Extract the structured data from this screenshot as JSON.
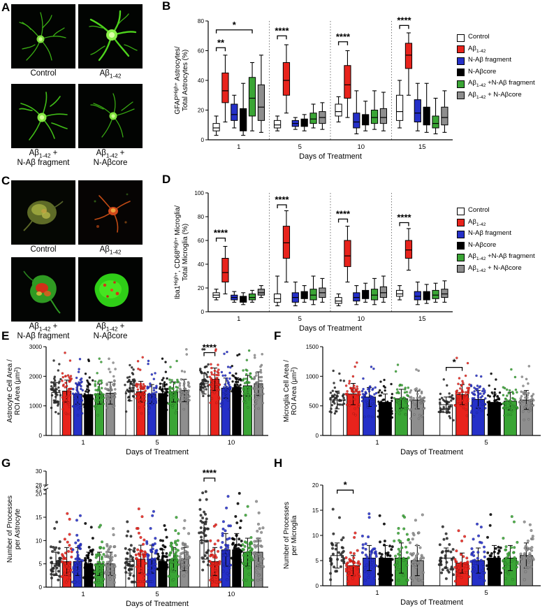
{
  "panels": {
    "A": {
      "letter": "A",
      "captions": [
        "Control",
        "Aβ_{1-42}",
        "Aβ_{1-42} +\nN-Aβ fragment",
        "Aβ_{1-42} +\nN-Aβcore"
      ]
    },
    "B": {
      "letter": "B"
    },
    "C": {
      "letter": "C",
      "captions": [
        "Control",
        "Aβ_{1-42}",
        "Aβ_{1-42} +\nN-Aβ fragment",
        "Aβ_{1-42} +\nN-Aβcore"
      ]
    },
    "D": {
      "letter": "D"
    },
    "E": {
      "letter": "E"
    },
    "F": {
      "letter": "F"
    },
    "G": {
      "letter": "G"
    },
    "H": {
      "letter": "H"
    }
  },
  "legend": {
    "entries": [
      {
        "label": "Control",
        "color": "#ffffff",
        "dot": "#2b2b2b"
      },
      {
        "label": "Aβ_{1-42}",
        "color": "#e8231c",
        "dot": "#e8231c"
      },
      {
        "label": "N-Aβ fragment",
        "color": "#2530c8",
        "dot": "#2530c8"
      },
      {
        "label": "N-Aβcore",
        "color": "#000000",
        "dot": "#000000"
      },
      {
        "label": "Aβ_{1-42} +N-Aβ fragment",
        "color": "#3aa535",
        "dot": "#3aa535"
      },
      {
        "label": "Aβ_{1-42} + N-Aβcore",
        "color": "#8e8e8e",
        "dot": "#8e8e8e"
      }
    ]
  },
  "chart_data": [
    {
      "id": "chart-b",
      "type": "box",
      "ylabel": "GFAP^{High+} Astrocytes/\nTotal Astrocytes (%)",
      "xlabel": "Days of Treatment",
      "ylim": [
        0,
        80
      ],
      "yticks": [
        0,
        20,
        40,
        60,
        80
      ],
      "categories": [
        "1",
        "5",
        "10",
        "15"
      ],
      "separators": true,
      "series": [
        {
          "boxes": [
            [
              3,
              6,
              8,
              11,
              16
            ],
            [
              6,
              8,
              10,
              13,
              16
            ],
            [
              12,
              16,
              19,
              24,
              29
            ],
            [
              8,
              13,
              19,
              30,
              40
            ]
          ]
        },
        {
          "boxes": [
            [
              12,
              25,
              33,
              45,
              57
            ],
            [
              18,
              30,
              40,
              52,
              64
            ],
            [
              15,
              28,
              37,
              50,
              60
            ],
            [
              30,
              48,
              57,
              65,
              72
            ]
          ]
        },
        {
          "boxes": [
            [
              8,
              13,
              17,
              24,
              30
            ],
            [
              7,
              9,
              11,
              13,
              15
            ],
            [
              4,
              8,
              12,
              18,
              33
            ],
            [
              6,
              12,
              18,
              27,
              38
            ]
          ]
        },
        {
          "boxes": [
            [
              3,
              6,
              10,
              21,
              38
            ],
            [
              6,
              9,
              11,
              14,
              17
            ],
            [
              6,
              10,
              13,
              17,
              26
            ],
            [
              5,
              10,
              14,
              22,
              38
            ]
          ]
        },
        {
          "boxes": [
            [
              6,
              16,
              28,
              42,
              52
            ],
            [
              8,
              11,
              14,
              18,
              24
            ],
            [
              7,
              11,
              15,
              20,
              33
            ],
            [
              4,
              8,
              11,
              16,
              28
            ]
          ]
        },
        {
          "boxes": [
            [
              5,
              13,
              22,
              37,
              57
            ],
            [
              7,
              11,
              15,
              19,
              25
            ],
            [
              6,
              11,
              15,
              21,
              32
            ],
            [
              5,
              10,
              15,
              22,
              33
            ]
          ]
        }
      ],
      "significance": [
        {
          "group": 0,
          "from": 0,
          "to": 1,
          "label": "**",
          "y": 62
        },
        {
          "group": 0,
          "from": 0,
          "to": 4,
          "label": "*",
          "y": 74
        },
        {
          "group": 1,
          "from": 0,
          "to": 1,
          "label": "****",
          "y": 70
        },
        {
          "group": 2,
          "from": 0,
          "to": 1,
          "label": "****",
          "y": 66
        },
        {
          "group": 3,
          "from": 0,
          "to": 1,
          "label": "****",
          "y": 77
        }
      ]
    },
    {
      "id": "chart-d",
      "type": "box",
      "ylabel": "Iba1^{High+}, CD68^{High+} Microglia/\nTotal Microglia (%)",
      "xlabel": "Days of Treatment",
      "ylim": [
        0,
        100
      ],
      "yticks": [
        0,
        20,
        40,
        60,
        80,
        100
      ],
      "categories": [
        "1",
        "5",
        "10",
        "15"
      ],
      "separators": true,
      "series": [
        {
          "boxes": [
            [
              10,
              12,
              14,
              16,
              19
            ],
            [
              5,
              8,
              11,
              15,
              30
            ],
            [
              5,
              7,
              9,
              12,
              15
            ],
            [
              10,
              13,
              15,
              18,
              22
            ]
          ]
        },
        {
          "boxes": [
            [
              15,
              25,
              33,
              45,
              55
            ],
            [
              25,
              45,
              58,
              72,
              85
            ],
            [
              25,
              38,
              47,
              60,
              72
            ],
            [
              35,
              45,
              52,
              60,
              70
            ]
          ]
        },
        {
          "boxes": [
            [
              8,
              10,
              12,
              14,
              17
            ],
            [
              5,
              8,
              12,
              16,
              25
            ],
            [
              6,
              9,
              12,
              16,
              22
            ],
            [
              6,
              10,
              13,
              17,
              25
            ]
          ]
        },
        {
          "boxes": [
            [
              6,
              8,
              10,
              13,
              16
            ],
            [
              8,
              11,
              14,
              17,
              22
            ],
            [
              8,
              11,
              14,
              18,
              24
            ],
            [
              7,
              10,
              13,
              17,
              23
            ]
          ]
        },
        {
          "boxes": [
            [
              8,
              10,
              12,
              15,
              18
            ],
            [
              6,
              10,
              14,
              19,
              30
            ],
            [
              6,
              10,
              14,
              19,
              28
            ],
            [
              8,
              11,
              14,
              18,
              24
            ]
          ]
        },
        {
          "boxes": [
            [
              12,
              14,
              16,
              19,
              22
            ],
            [
              8,
              12,
              16,
              20,
              28
            ],
            [
              8,
              12,
              16,
              21,
              30
            ],
            [
              8,
              12,
              15,
              19,
              26
            ]
          ]
        }
      ],
      "significance": [
        {
          "group": 0,
          "from": 0,
          "to": 1,
          "label": "****",
          "y": 62
        },
        {
          "group": 1,
          "from": 0,
          "to": 1,
          "label": "****",
          "y": 90
        },
        {
          "group": 2,
          "from": 0,
          "to": 1,
          "label": "****",
          "y": 78
        },
        {
          "group": 3,
          "from": 0,
          "to": 1,
          "label": "****",
          "y": 75
        }
      ]
    },
    {
      "id": "chart-e",
      "type": "bar",
      "dots": 42,
      "dotR": 1.6,
      "ylabel": "Astrocyte Cell Area /\nROI Area (μm^{2})",
      "xlabel": "Days of Treatment",
      "ylim": [
        0,
        3000
      ],
      "yticks": [
        0,
        1000,
        2000,
        3000
      ],
      "categories": [
        "1",
        "5",
        "10"
      ],
      "series": [
        {
          "means": [
            1450,
            1500,
            1750
          ],
          "sds": [
            340,
            330,
            350
          ]
        },
        {
          "means": [
            1500,
            1480,
            1900
          ],
          "sds": [
            370,
            350,
            380
          ]
        },
        {
          "means": [
            1400,
            1400,
            1600
          ],
          "sds": [
            340,
            320,
            340
          ]
        },
        {
          "means": [
            1380,
            1420,
            1620
          ],
          "sds": [
            320,
            330,
            330
          ]
        },
        {
          "means": [
            1400,
            1470,
            1680
          ],
          "sds": [
            340,
            340,
            350
          ]
        },
        {
          "means": [
            1430,
            1520,
            1750
          ],
          "sds": [
            370,
            380,
            400
          ]
        }
      ],
      "significance": [
        {
          "group": 2,
          "from": 0,
          "to": 1,
          "label": "****",
          "y": 2800
        }
      ]
    },
    {
      "id": "chart-f",
      "type": "bar",
      "dots": 44,
      "dotR": 1.6,
      "ylabel": "Microglia Cell Area /\nROI Area (μm^{2})",
      "xlabel": "Days of Treatment",
      "ylim": [
        0,
        1500
      ],
      "yticks": [
        0,
        500,
        1000,
        1500
      ],
      "categories": [
        "1",
        "5"
      ],
      "series": [
        {
          "means": [
            600,
            520
          ],
          "sds": [
            150,
            130
          ]
        },
        {
          "means": [
            700,
            690
          ],
          "sds": [
            180,
            170
          ]
        },
        {
          "means": [
            650,
            610
          ],
          "sds": [
            160,
            150
          ]
        },
        {
          "means": [
            560,
            560
          ],
          "sds": [
            140,
            140
          ]
        },
        {
          "means": [
            620,
            580
          ],
          "sds": [
            160,
            150
          ]
        },
        {
          "means": [
            600,
            600
          ],
          "sds": [
            150,
            160
          ]
        }
      ],
      "significance": [
        {
          "group": 1,
          "from": 0,
          "to": 1,
          "label": "*",
          "y": 1150
        }
      ]
    },
    {
      "id": "chart-g",
      "type": "bar",
      "dots": 38,
      "dotR": 1.9,
      "ylabel": "Number of Processes\nper Astrocyte",
      "xlabel": "Days of Treatment",
      "ylim": [
        0,
        30
      ],
      "ybreak": [
        21,
        28
      ],
      "yticks": [
        0,
        5,
        10,
        15,
        20,
        21
      ],
      "yticks_upper": [
        28,
        30
      ],
      "categories": [
        "1",
        "5",
        "10"
      ],
      "series": [
        {
          "means": [
            5,
            5.5,
            10
          ],
          "sds": [
            2.5,
            2.5,
            4
          ]
        },
        {
          "means": [
            5.5,
            6,
            5.5
          ],
          "sds": [
            3,
            3,
            3
          ]
        },
        {
          "means": [
            5.5,
            6,
            8
          ],
          "sds": [
            3,
            3,
            3.5
          ]
        },
        {
          "means": [
            5,
            5.5,
            8
          ],
          "sds": [
            2.5,
            2.5,
            3.5
          ]
        },
        {
          "means": [
            5,
            6,
            7.5
          ],
          "sds": [
            2.5,
            2.5,
            3
          ]
        },
        {
          "means": [
            5,
            6,
            7.5
          ],
          "sds": [
            2.5,
            2.5,
            3
          ]
        }
      ],
      "significance": [
        {
          "group": 2,
          "from": 0,
          "to": 1,
          "label": "****",
          "y": 29
        }
      ]
    },
    {
      "id": "chart-h",
      "type": "bar",
      "dots": 34,
      "dotR": 1.9,
      "ylabel": "Number of Processes\nper Microglia",
      "xlabel": "Days of Treatment",
      "ylim": [
        0,
        20
      ],
      "yticks": [
        0,
        5,
        10,
        15,
        20
      ],
      "categories": [
        "1",
        "5"
      ],
      "series": [
        {
          "means": [
            6,
            5.5
          ],
          "sds": [
            2.5,
            2
          ]
        },
        {
          "means": [
            4,
            4.5
          ],
          "sds": [
            2,
            2
          ]
        },
        {
          "means": [
            5.5,
            5
          ],
          "sds": [
            2.5,
            2.5
          ]
        },
        {
          "means": [
            5.5,
            5.5
          ],
          "sds": [
            2.5,
            2.5
          ]
        },
        {
          "means": [
            5.5,
            5.5
          ],
          "sds": [
            3,
            2.5
          ]
        },
        {
          "means": [
            5,
            6
          ],
          "sds": [
            3,
            2.5
          ]
        }
      ],
      "significance": [
        {
          "group": 0,
          "from": 0,
          "to": 1,
          "label": "*",
          "y": 19
        }
      ]
    }
  ]
}
